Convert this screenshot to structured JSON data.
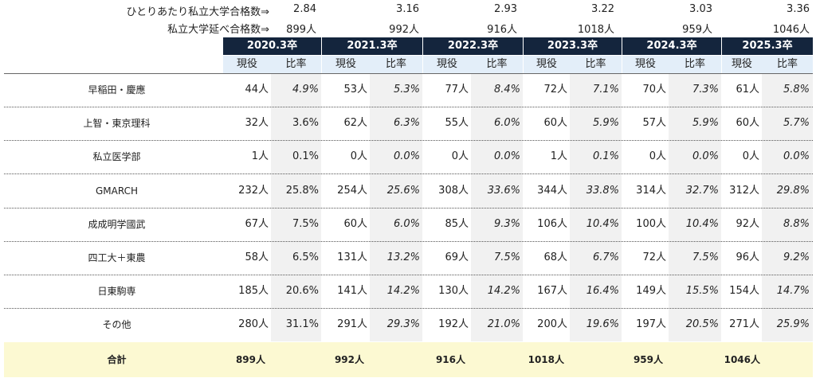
{
  "summary": {
    "per_student_label": "ひとりあたり私立大学合格数⇒",
    "per_student_values": [
      "2.84",
      "3.16",
      "2.93",
      "3.22",
      "3.03",
      "3.36"
    ],
    "total_label": "私立大学延べ合格数⇒",
    "total_values": [
      "899人",
      "992人",
      "916人",
      "1018人",
      "959人",
      "1046人"
    ]
  },
  "years": [
    "2020.3卒",
    "2021.3卒",
    "2022.3卒",
    "2023.3卒",
    "2024.3卒",
    "2025.3卒"
  ],
  "subheaders": {
    "count": "現役",
    "rate": "比率"
  },
  "rows": [
    {
      "label": "早稲田・慶應",
      "cells": [
        [
          "44人",
          "4.9%"
        ],
        [
          "53人",
          "5.3%"
        ],
        [
          "77人",
          "8.4%"
        ],
        [
          "72人",
          "7.1%"
        ],
        [
          "70人",
          "7.3%"
        ],
        [
          "61人",
          "5.8%"
        ]
      ]
    },
    {
      "label": "上智・東京理科",
      "cells": [
        [
          "32人",
          "3.6%"
        ],
        [
          "62人",
          "6.3%"
        ],
        [
          "55人",
          "6.0%"
        ],
        [
          "60人",
          "5.9%"
        ],
        [
          "57人",
          "5.9%"
        ],
        [
          "60人",
          "5.7%"
        ]
      ]
    },
    {
      "label": "私立医学部",
      "cells": [
        [
          "1人",
          "0.1%"
        ],
        [
          "0人",
          "0.0%"
        ],
        [
          "0人",
          "0.0%"
        ],
        [
          "1人",
          "0.1%"
        ],
        [
          "0人",
          "0.0%"
        ],
        [
          "0人",
          "0.0%"
        ]
      ]
    },
    {
      "label": "GMARCH",
      "cells": [
        [
          "232人",
          "25.8%"
        ],
        [
          "254人",
          "25.6%"
        ],
        [
          "308人",
          "33.6%"
        ],
        [
          "344人",
          "33.8%"
        ],
        [
          "314人",
          "32.7%"
        ],
        [
          "312人",
          "29.8%"
        ]
      ]
    },
    {
      "label": "成成明学國武",
      "cells": [
        [
          "67人",
          "7.5%"
        ],
        [
          "60人",
          "6.0%"
        ],
        [
          "85人",
          "9.3%"
        ],
        [
          "106人",
          "10.4%"
        ],
        [
          "100人",
          "10.4%"
        ],
        [
          "92人",
          "8.8%"
        ]
      ]
    },
    {
      "label": "四工大＋東農",
      "cells": [
        [
          "58人",
          "6.5%"
        ],
        [
          "131人",
          "13.2%"
        ],
        [
          "69人",
          "7.5%"
        ],
        [
          "68人",
          "6.7%"
        ],
        [
          "72人",
          "7.5%"
        ],
        [
          "96人",
          "9.2%"
        ]
      ]
    },
    {
      "label": "日東駒専",
      "cells": [
        [
          "185人",
          "20.6%"
        ],
        [
          "141人",
          "14.2%"
        ],
        [
          "130人",
          "14.2%"
        ],
        [
          "167人",
          "16.4%"
        ],
        [
          "149人",
          "15.5%"
        ],
        [
          "154人",
          "14.7%"
        ]
      ]
    },
    {
      "label": "その他",
      "cells": [
        [
          "280人",
          "31.1%"
        ],
        [
          "291人",
          "29.3%"
        ],
        [
          "192人",
          "21.0%"
        ],
        [
          "200人",
          "19.6%"
        ],
        [
          "197人",
          "20.5%"
        ],
        [
          "271人",
          "25.9%"
        ]
      ]
    }
  ],
  "total": {
    "label": "合計",
    "values": [
      "899人",
      "992人",
      "916人",
      "1018人",
      "959人",
      "1046人"
    ]
  }
}
